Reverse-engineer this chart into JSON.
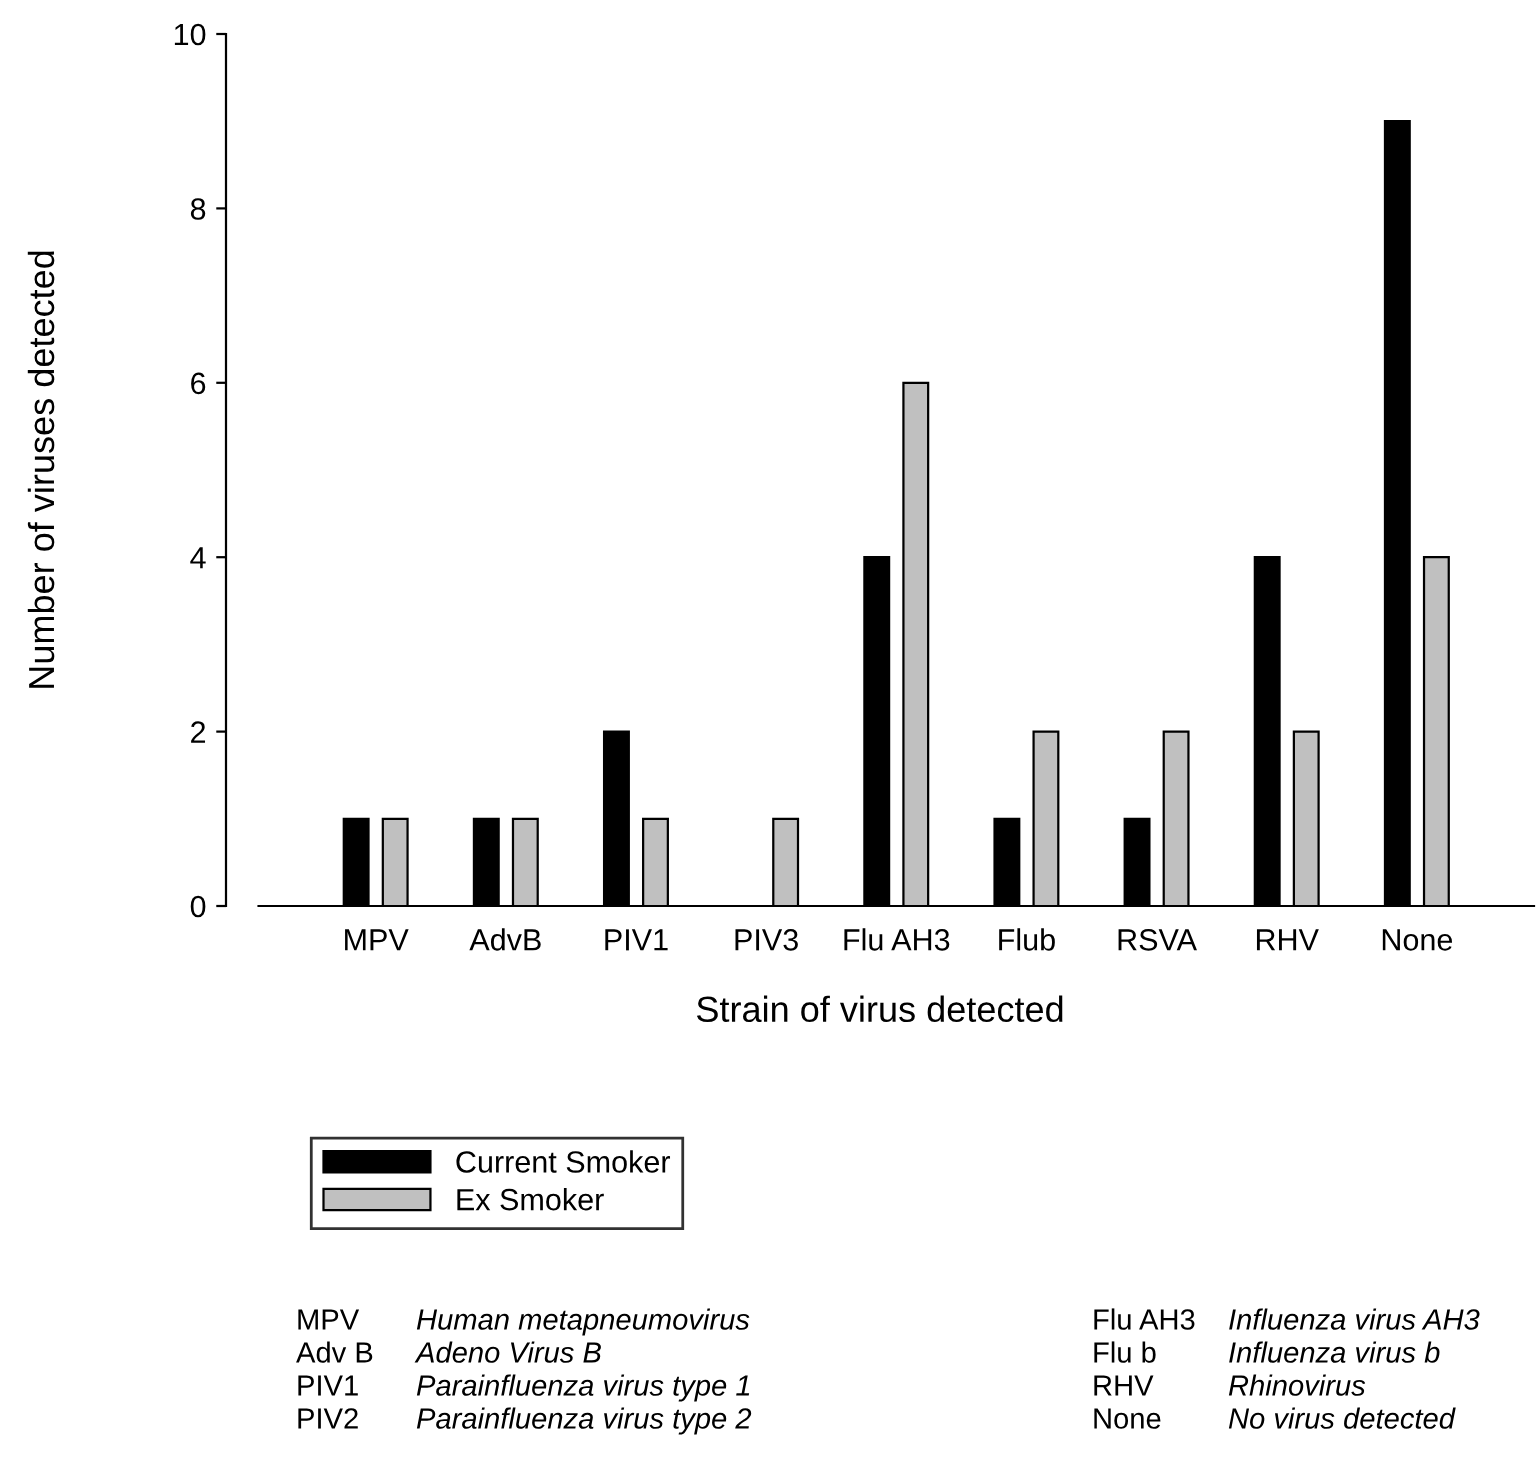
{
  "chart_data": {
    "type": "bar",
    "xlabel": "Strain of virus detected",
    "ylabel": "Number of viruses detected",
    "categories": [
      "MPV",
      "AdvB",
      "PIV1",
      "PIV3",
      "Flu AH3",
      "Flub",
      "RSVA",
      "RHV",
      "None"
    ],
    "series": [
      {
        "name": "Current Smoker",
        "color": "#000000",
        "values": [
          1,
          1,
          2,
          0,
          4,
          1,
          1,
          4,
          9
        ]
      },
      {
        "name": "Ex Smoker",
        "color": "#c0c0c0",
        "values": [
          1,
          1,
          1,
          1,
          6,
          2,
          2,
          2,
          4
        ]
      }
    ],
    "ylim": [
      0,
      10
    ],
    "yticks": [
      0,
      2,
      4,
      6,
      8,
      10
    ],
    "grid": false,
    "legend": "bottom left",
    "annotations": [
      "MPV",
      "Human metapneumovirus",
      "Adv B",
      "Adeno Virus B",
      "PIV1",
      "Parainfluenza virus type 1",
      "PIV2",
      "Parainfluenza virus type 2",
      "Flu AH3",
      "Influenza virus AH3",
      "Flu b",
      "Influenza virus b",
      "RHV",
      "Rhinovirus",
      "None",
      "No virus detected"
    ]
  }
}
